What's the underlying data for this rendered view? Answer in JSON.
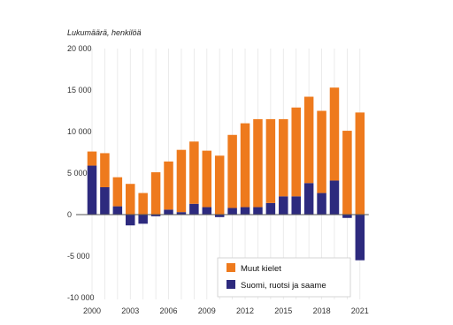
{
  "chart_data": {
    "type": "bar",
    "stacked": true,
    "unit_label": "Lukumäärä, henkilöä",
    "x": [
      2000,
      2001,
      2002,
      2003,
      2004,
      2005,
      2006,
      2007,
      2008,
      2009,
      2010,
      2011,
      2012,
      2013,
      2014,
      2015,
      2016,
      2017,
      2018,
      2019,
      2020,
      2021
    ],
    "x_tick_labels": [
      "2000",
      "2003",
      "2006",
      "2009",
      "2012",
      "2015",
      "2018",
      "2021"
    ],
    "y_tick_labels": [
      "20 000",
      "15 000",
      "10 000",
      "5 000",
      "0",
      "-5 000",
      "-10 000"
    ],
    "y_ticks": [
      20000,
      15000,
      10000,
      5000,
      0,
      -5000,
      -10000
    ],
    "ylim": [
      -10000,
      20000
    ],
    "series": [
      {
        "name": "Suomi, ruotsi ja saame",
        "color": "#2d2a7e",
        "values": [
          5900,
          3300,
          1000,
          -1300,
          -1100,
          -200,
          600,
          300,
          1300,
          900,
          -300,
          800,
          900,
          900,
          1400,
          2200,
          2200,
          3800,
          2600,
          4100,
          -400,
          -5500
        ]
      },
      {
        "name": "Muut kielet",
        "color": "#ee7a1d",
        "values": [
          1700,
          4100,
          3500,
          3700,
          2600,
          5100,
          5800,
          7500,
          7500,
          6800,
          7100,
          8800,
          10100,
          10600,
          10100,
          9300,
          10700,
          10400,
          9900,
          11200,
          10100,
          12300
        ]
      }
    ],
    "legend": {
      "placement": "bottom-right",
      "items": [
        "Muut kielet",
        "Suomi, ruotsi ja saame"
      ]
    },
    "grid": {
      "vertical": true,
      "horizontal": false,
      "zero_line": true
    }
  }
}
